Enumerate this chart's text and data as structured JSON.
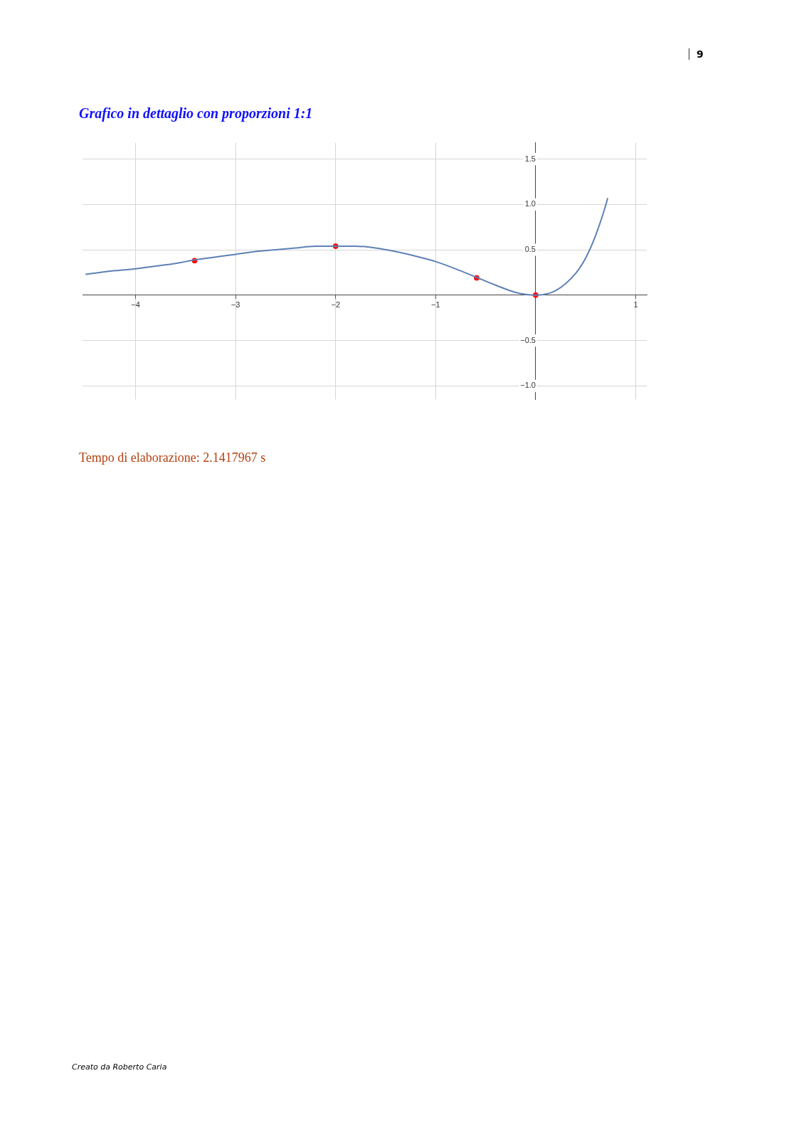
{
  "chart_data": {
    "type": "line",
    "title": "Grafico in dettaglio con proporzioni 1:1",
    "annotations": [
      "Tempo di elaborazione: 2.1417967 s",
      "9",
      "Creato da Roberto Caria"
    ],
    "series": [
      {
        "color": "#5e81b5",
        "marker": "none",
        "x": [
          -4.5,
          -4.2,
          -4.0,
          -3.8,
          -3.6,
          -3.4,
          -3.2,
          -3.0,
          -2.8,
          -2.6,
          -2.4,
          -2.2,
          -2.0,
          -1.8,
          -1.6,
          -1.4,
          -1.2,
          -1.0,
          -0.8,
          -0.6,
          -0.4,
          -0.2,
          0,
          0.2,
          0.4,
          0.5,
          0.6,
          0.7,
          0.72
        ],
        "values": [
          0.23,
          0.27,
          0.29,
          0.32,
          0.35,
          0.39,
          0.42,
          0.45,
          0.48,
          0.5,
          0.52,
          0.54,
          0.54,
          0.54,
          0.52,
          0.48,
          0.43,
          0.37,
          0.29,
          0.2,
          0.11,
          0.03,
          0,
          0.05,
          0.24,
          0.41,
          0.66,
          0.99,
          1.07
        ]
      },
      {
        "type": "scatter",
        "color": "#ff0000",
        "marker": "circle",
        "x": [
          -3.41,
          -2,
          -0.59,
          0
        ],
        "values": [
          0.38,
          0.54,
          0.19,
          0
        ]
      }
    ],
    "xlim": [
      -4.53,
      1.11
    ],
    "ylim": [
      -1.15,
      1.68
    ],
    "xticks": [
      {
        "value": -4,
        "label": "−4"
      },
      {
        "value": -3,
        "label": "−3"
      },
      {
        "value": -2,
        "label": "−2"
      },
      {
        "value": -1,
        "label": "−1"
      },
      1
    ],
    "yticks": [
      {
        "value": -1,
        "label": "−1.0"
      },
      {
        "value": -0.5,
        "label": "−0.5"
      },
      0.5,
      {
        "value": 1,
        "label": "1.0"
      },
      1.5
    ],
    "grid": true,
    "legend": false
  }
}
